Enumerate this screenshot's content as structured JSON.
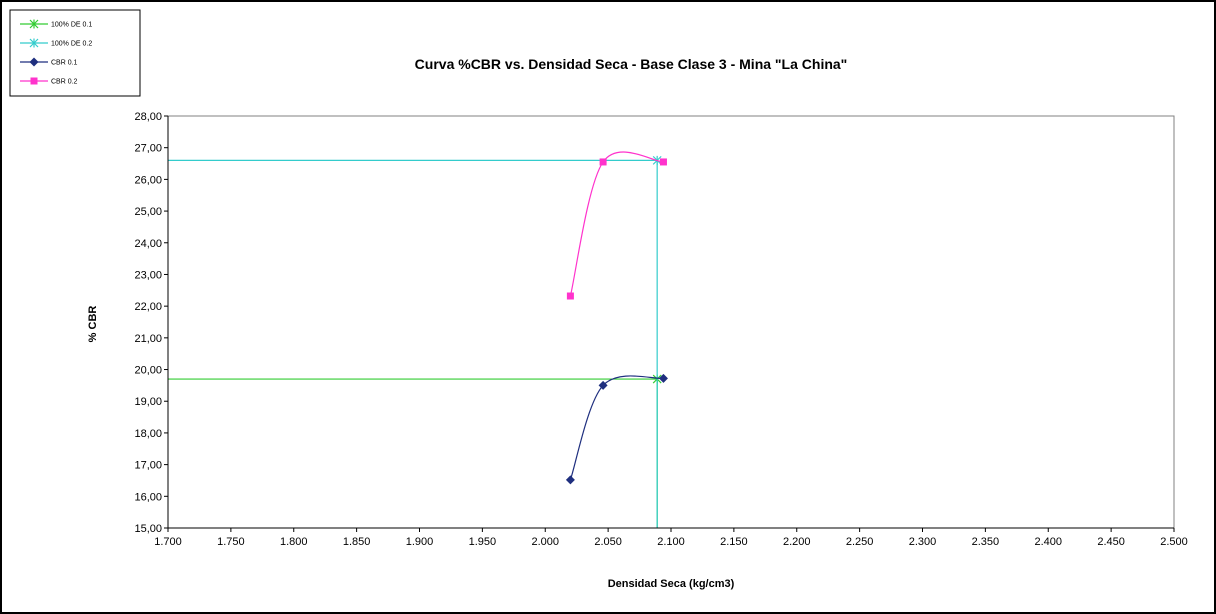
{
  "chart_data": {
    "type": "line",
    "title": "Curva  %CBR  vs. Densidad Seca -  Base Clase 3 - Mina \"La China\"",
    "xlabel": "Densidad Seca (kg/cm3)",
    "ylabel": "% CBR",
    "xlim": [
      1.7,
      2.5
    ],
    "ylim": [
      15,
      28
    ],
    "x_ticks": [
      "1.700",
      "1.750",
      "1.800",
      "1.850",
      "1.900",
      "1.950",
      "2.000",
      "2.050",
      "2.100",
      "2.150",
      "2.200",
      "2.250",
      "2.300",
      "2.350",
      "2.400",
      "2.450",
      "2.500"
    ],
    "y_ticks": [
      "15,00",
      "16,00",
      "17,00",
      "18,00",
      "19,00",
      "20,00",
      "21,00",
      "22,00",
      "23,00",
      "24,00",
      "25,00",
      "26,00",
      "27,00",
      "28,00"
    ],
    "grid": false,
    "legend_position": "top-left",
    "series": [
      {
        "name": "100% DE 0.1",
        "color": "#33cc33",
        "marker": "star",
        "smooth": false,
        "points": [
          [
            1.7,
            19.7
          ],
          [
            2.089,
            19.7
          ],
          [
            2.089,
            15.0
          ]
        ]
      },
      {
        "name": "100% DE 0.2",
        "color": "#33cccc",
        "marker": "star",
        "smooth": false,
        "points": [
          [
            1.7,
            26.6
          ],
          [
            2.089,
            26.6
          ],
          [
            2.089,
            15.0
          ]
        ]
      },
      {
        "name": "CBR 0.1",
        "color": "#1f2f7f",
        "marker": "diamond",
        "smooth": true,
        "points": [
          [
            2.02,
            16.52
          ],
          [
            2.046,
            19.5
          ],
          [
            2.094,
            19.72
          ]
        ]
      },
      {
        "name": "CBR 0.2",
        "color": "#ff33cc",
        "marker": "square",
        "smooth": true,
        "points": [
          [
            2.02,
            22.32
          ],
          [
            2.046,
            26.55
          ],
          [
            2.094,
            26.55
          ]
        ]
      }
    ]
  }
}
